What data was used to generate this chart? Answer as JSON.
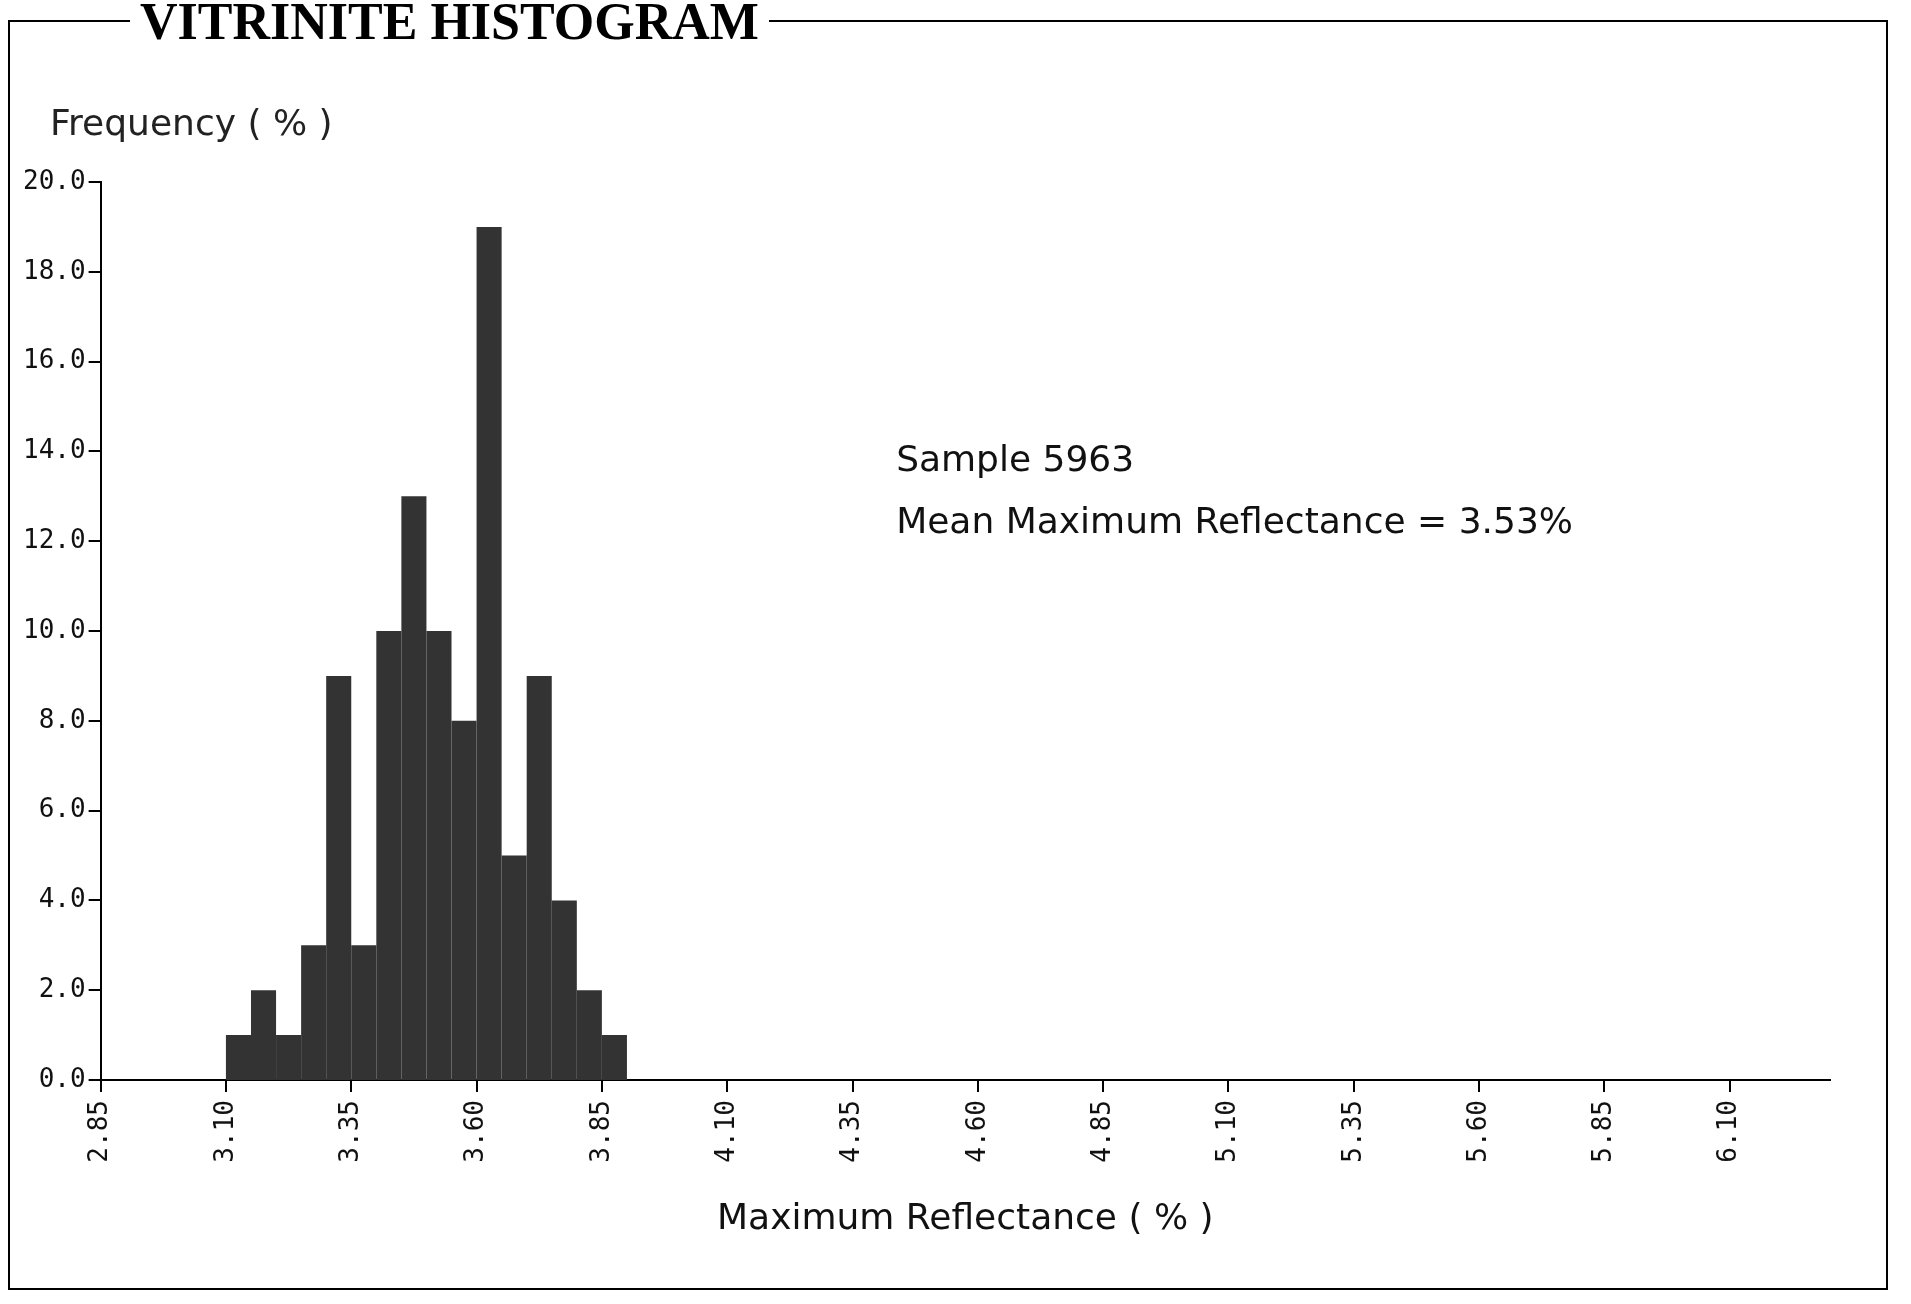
{
  "chart_data": {
    "type": "histogram",
    "title": "VITRINITE HISTOGRAM",
    "xlabel": "Maximum Reflectance ( % )",
    "ylabel": "Frequency ( % )",
    "bins": [
      3.1,
      3.15,
      3.2,
      3.25,
      3.3,
      3.35,
      3.4,
      3.45,
      3.5,
      3.55,
      3.6,
      3.65,
      3.7,
      3.75,
      3.8,
      3.85,
      3.9
    ],
    "values": [
      1,
      2,
      1,
      3,
      9,
      3,
      10,
      13,
      10,
      8,
      19,
      5,
      9,
      4,
      2,
      1
    ],
    "color": "#333333",
    "xlim": [
      2.85,
      6.3
    ],
    "xticks": [
      {
        "value": 2.85,
        "label": "2.85"
      },
      {
        "value": 3.1,
        "label": "3.10"
      },
      {
        "value": 3.35,
        "label": "3.35"
      },
      {
        "value": 3.6,
        "label": "3.60"
      },
      {
        "value": 3.85,
        "label": "3.85"
      },
      {
        "value": 4.1,
        "label": "4.10"
      },
      {
        "value": 4.35,
        "label": "4.35"
      },
      {
        "value": 4.6,
        "label": "4.60"
      },
      {
        "value": 4.85,
        "label": "4.85"
      },
      {
        "value": 5.1,
        "label": "5.10"
      },
      {
        "value": 5.35,
        "label": "5.35"
      },
      {
        "value": 5.6,
        "label": "5.60"
      },
      {
        "value": 5.85,
        "label": "5.85"
      },
      {
        "value": 6.1,
        "label": "6.10"
      }
    ],
    "ylim": [
      0,
      20
    ],
    "yticks": [
      {
        "value": 0,
        "label": "0.0"
      },
      {
        "value": 2,
        "label": "2.0"
      },
      {
        "value": 4,
        "label": "4.0"
      },
      {
        "value": 6,
        "label": "6.0"
      },
      {
        "value": 8,
        "label": "8.0"
      },
      {
        "value": 10,
        "label": "10.0"
      },
      {
        "value": 12,
        "label": "12.0"
      },
      {
        "value": 14,
        "label": "14.0"
      },
      {
        "value": 16,
        "label": "16.0"
      },
      {
        "value": 18,
        "label": "18.0"
      },
      {
        "value": 20,
        "label": "20.0"
      }
    ],
    "grid": false,
    "legend": false,
    "annotations": [
      "Sample 5963",
      "Mean Maximum Reflectance = 3.53%"
    ]
  }
}
